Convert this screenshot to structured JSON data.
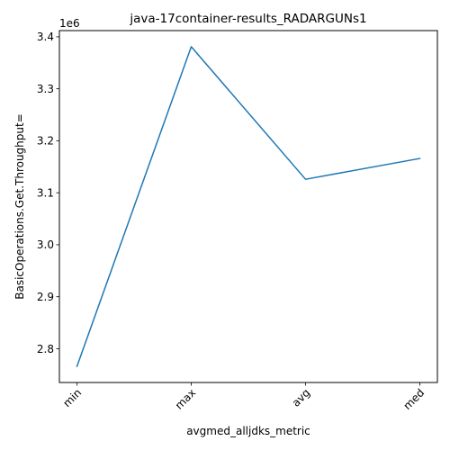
{
  "chart_data": {
    "type": "line",
    "title": "java-17container-results_RADARGUNs1",
    "xlabel": "avgmed_alljdks_metric",
    "ylabel": "BasicOperations.Get.Throughput=",
    "y_offset_label": "1e6",
    "categories": [
      "min",
      "max",
      "avg",
      "med"
    ],
    "series": [
      {
        "values": [
          2766000,
          3381000,
          3126000,
          3166000
        ]
      }
    ],
    "ylim": [
      2735000,
      3412000
    ],
    "yticks": [
      2800000,
      2900000,
      3000000,
      3100000,
      3200000,
      3300000,
      3400000
    ],
    "ytick_labels": [
      "2.8",
      "2.9",
      "3.0",
      "3.1",
      "3.2",
      "3.3",
      "3.4"
    ],
    "grid": false,
    "line_color": "#1f77b4"
  }
}
